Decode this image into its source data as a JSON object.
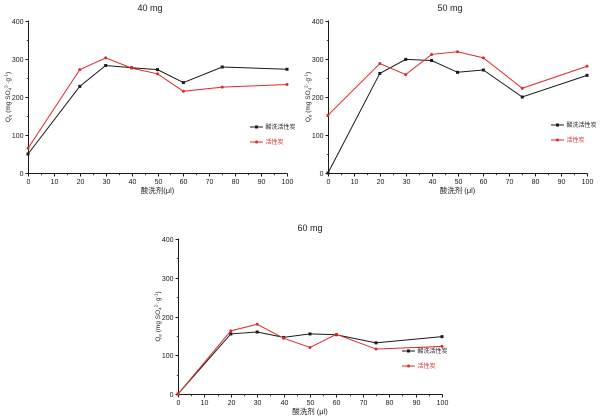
{
  "figure": {
    "background": "#ffffff",
    "axis_color": "#1a1a1a",
    "text_color": "#1a1a1a"
  },
  "chart_data": [
    {
      "type": "line",
      "title": "40 mg",
      "xlabel": "酸洗剂(μl)",
      "ylabel_parts": [
        {
          "t": "Q"
        },
        {
          "t": "e",
          "s": "sub"
        },
        {
          "t": " (mg SO"
        },
        {
          "t": "4",
          "s": "sub"
        },
        {
          "t": "2-",
          "s": "sup"
        },
        {
          "t": "·g",
          "s": ""
        },
        {
          "t": "-1",
          "s": "sup"
        },
        {
          "t": ")"
        }
      ],
      "xlim": [
        0,
        100
      ],
      "ylim": [
        0,
        400
      ],
      "xticks": [
        0,
        10,
        20,
        30,
        40,
        50,
        60,
        70,
        80,
        90,
        100
      ],
      "yticks": [
        0,
        100,
        200,
        300,
        400
      ],
      "x_minor_step": 5,
      "y_minor_step": 50,
      "x": [
        0,
        20,
        30,
        40,
        50,
        60,
        75,
        100
      ],
      "series": [
        {
          "name": "酸洗活性炭",
          "color": "#1a1a1a",
          "marker": "square",
          "values": [
            50,
            228,
            283,
            277,
            272,
            238,
            279,
            273
          ]
        },
        {
          "name": "活性炭",
          "color": "#dd2c2a",
          "marker": "circle",
          "values": [
            65,
            272,
            303,
            276,
            261,
            215,
            226,
            233
          ]
        }
      ],
      "legend_position": "right-center",
      "grid": "off"
    },
    {
      "type": "line",
      "title": "50 mg",
      "xlabel": "酸洗剂 (μl)",
      "ylabel_parts": [
        {
          "t": "Q"
        },
        {
          "t": "e",
          "s": "sub"
        },
        {
          "t": " (mg SO"
        },
        {
          "t": "4",
          "s": "sub"
        },
        {
          "t": "2-",
          "s": "sup"
        },
        {
          "t": "·g",
          "s": ""
        },
        {
          "t": "-1",
          "s": "sup"
        },
        {
          "t": ")"
        }
      ],
      "xlim": [
        0,
        100
      ],
      "ylim": [
        0,
        400
      ],
      "xticks": [
        0,
        10,
        20,
        30,
        40,
        50,
        60,
        70,
        80,
        90,
        100
      ],
      "yticks": [
        0,
        100,
        200,
        300,
        400
      ],
      "x_minor_step": 5,
      "y_minor_step": 50,
      "x": [
        0,
        20,
        30,
        40,
        50,
        60,
        75,
        100
      ],
      "series": [
        {
          "name": "酸洗活性炭",
          "color": "#1a1a1a",
          "marker": "square",
          "values": [
            0,
            262,
            299,
            296,
            265,
            271,
            200,
            257
          ]
        },
        {
          "name": "活性炭",
          "color": "#dd2c2a",
          "marker": "circle",
          "values": [
            152,
            288,
            259,
            312,
            319,
            303,
            223,
            281
          ]
        }
      ],
      "legend_position": "right-center",
      "grid": "off"
    },
    {
      "type": "line",
      "title": "60 mg",
      "xlabel": "酸洗剂 (μl)",
      "ylabel_parts": [
        {
          "t": "Q"
        },
        {
          "t": "e",
          "s": "sub"
        },
        {
          "t": " (mg SO"
        },
        {
          "t": "4",
          "s": "sub"
        },
        {
          "t": "2-",
          "s": "sup"
        },
        {
          "t": "·g",
          "s": ""
        },
        {
          "t": "-1",
          "s": "sup"
        },
        {
          "t": ")"
        }
      ],
      "xlim": [
        0,
        100
      ],
      "ylim": [
        0,
        400
      ],
      "xticks": [
        0,
        10,
        20,
        30,
        40,
        50,
        60,
        70,
        80,
        90,
        100
      ],
      "yticks": [
        0,
        100,
        200,
        300,
        400
      ],
      "x_minor_step": 5,
      "y_minor_step": 50,
      "x": [
        0,
        20,
        30,
        40,
        50,
        60,
        75,
        100
      ],
      "series": [
        {
          "name": "酸洗活性炭",
          "color": "#1a1a1a",
          "marker": "square",
          "values": [
            0,
            155,
            160,
            146,
            155,
            153,
            132,
            148
          ]
        },
        {
          "name": "活性炭",
          "color": "#dd2c2a",
          "marker": "circle",
          "values": [
            0,
            163,
            180,
            144,
            120,
            154,
            116,
            123
          ]
        }
      ],
      "legend_position": "right-center",
      "grid": "off"
    }
  ]
}
